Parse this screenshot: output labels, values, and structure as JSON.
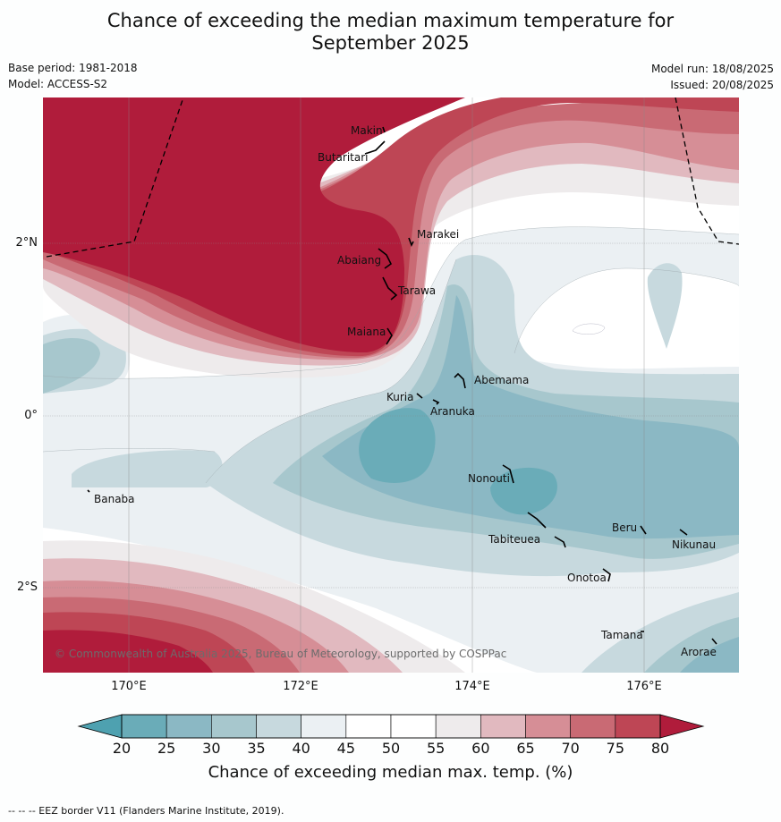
{
  "title_line1": "Chance of exceeding the median maximum temperature for",
  "title_line2": "September 2025",
  "meta": {
    "base_period": "Base period: 1981-2018",
    "model": "Model: ACCESS-S2",
    "model_run": "Model run: 18/08/2025",
    "issued": "Issued: 20/08/2025"
  },
  "lat_labels": [
    "2°N",
    "0°",
    "2°S"
  ],
  "lon_labels": [
    "170°E",
    "172°E",
    "174°E",
    "176°E"
  ],
  "places": {
    "makin": "Makin",
    "butaritari": "Butaritari",
    "marakei": "Marakei",
    "abaiang": "Abaiang",
    "tarawa": "Tarawa",
    "maiana": "Maiana",
    "abemama": "Abemama",
    "kuria": "Kuria",
    "aranuka": "Aranuka",
    "banaba": "Banaba",
    "nonouti": "Nonouti",
    "beru": "Beru",
    "tabiteuea": "Tabiteuea",
    "nikunau": "Nikunau",
    "onotoa": "Onotoa",
    "tamana": "Tamana",
    "arorae": "Arorae"
  },
  "copyright": "© Commonwealth of Australia 2025, Bureau of Meteorology, supported by COSPPac",
  "colorbar": {
    "ticks": [
      "20",
      "25",
      "30",
      "35",
      "40",
      "45",
      "50",
      "55",
      "60",
      "65",
      "70",
      "75",
      "80"
    ],
    "colors": [
      "#6aacb8",
      "#8bb8c4",
      "#a7c7cd",
      "#c7d9de",
      "#ebf0f3",
      "#ffffff",
      "#ffffff",
      "#eeebec",
      "#e1b9bf",
      "#d68e96",
      "#c96a74",
      "#be4655"
    ],
    "under_color": "#4ea1b0",
    "over_color": "#b01c3b",
    "label": "Chance of exceeding median max. temp. (%)"
  },
  "eez_note": "--  --  -- EEZ border V11 (Flanders Marine Institute, 2019)."
}
